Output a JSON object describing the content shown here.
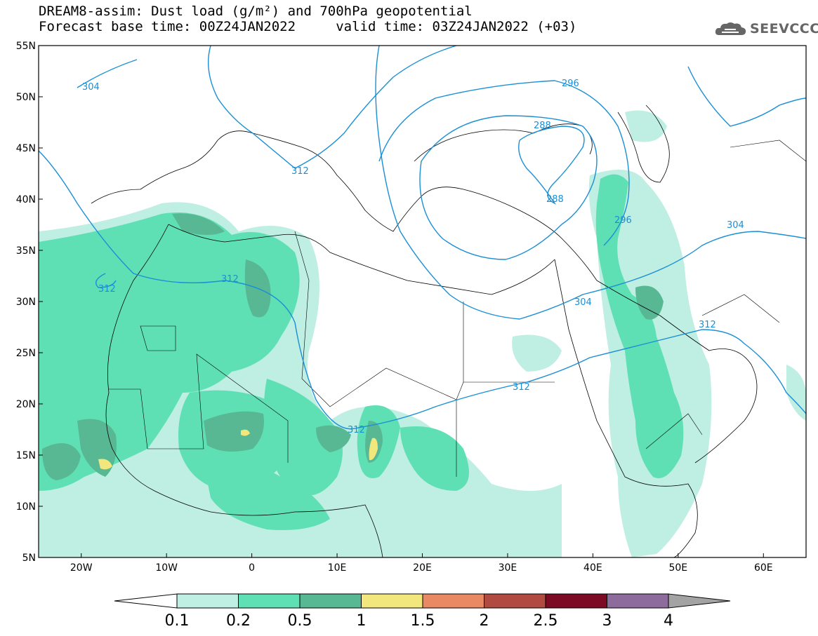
{
  "title": {
    "line1": "DREAM8-assim: Dust load (g/m²) and 700hPa geopotential",
    "line2": "Forecast base time: 00Z24JAN2022     valid time: 03Z24JAN2022 (+03)"
  },
  "logo": {
    "text": "SEEVCCC",
    "icon": "cloud-icon"
  },
  "map": {
    "lon_range": [
      -25,
      65
    ],
    "lat_range": [
      5,
      55
    ],
    "y_ticks": [
      "55N",
      "50N",
      "45N",
      "40N",
      "35N",
      "30N",
      "25N",
      "20N",
      "15N",
      "10N",
      "5N"
    ],
    "x_ticks": [
      "20W",
      "10W",
      "0",
      "10E",
      "20E",
      "30E",
      "40E",
      "50E",
      "60E"
    ],
    "contour_color": "#1a8fd6",
    "contour_labels": [
      "304",
      "312",
      "312",
      "296",
      "288",
      "288",
      "296",
      "304",
      "304",
      "312",
      "312",
      "312",
      "312"
    ]
  },
  "colorbar": {
    "labels": [
      "0.1",
      "0.2",
      "0.5",
      "1",
      "1.5",
      "2",
      "2.5",
      "3",
      "4"
    ],
    "colors": [
      "#bfeee2",
      "#5fe0b4",
      "#59b894",
      "#f2e77c",
      "#e98963",
      "#b14b42",
      "#7d0a25",
      "#8e6b9d",
      "#a3a3a3"
    ],
    "lower_extend_color": "#ffffff"
  }
}
